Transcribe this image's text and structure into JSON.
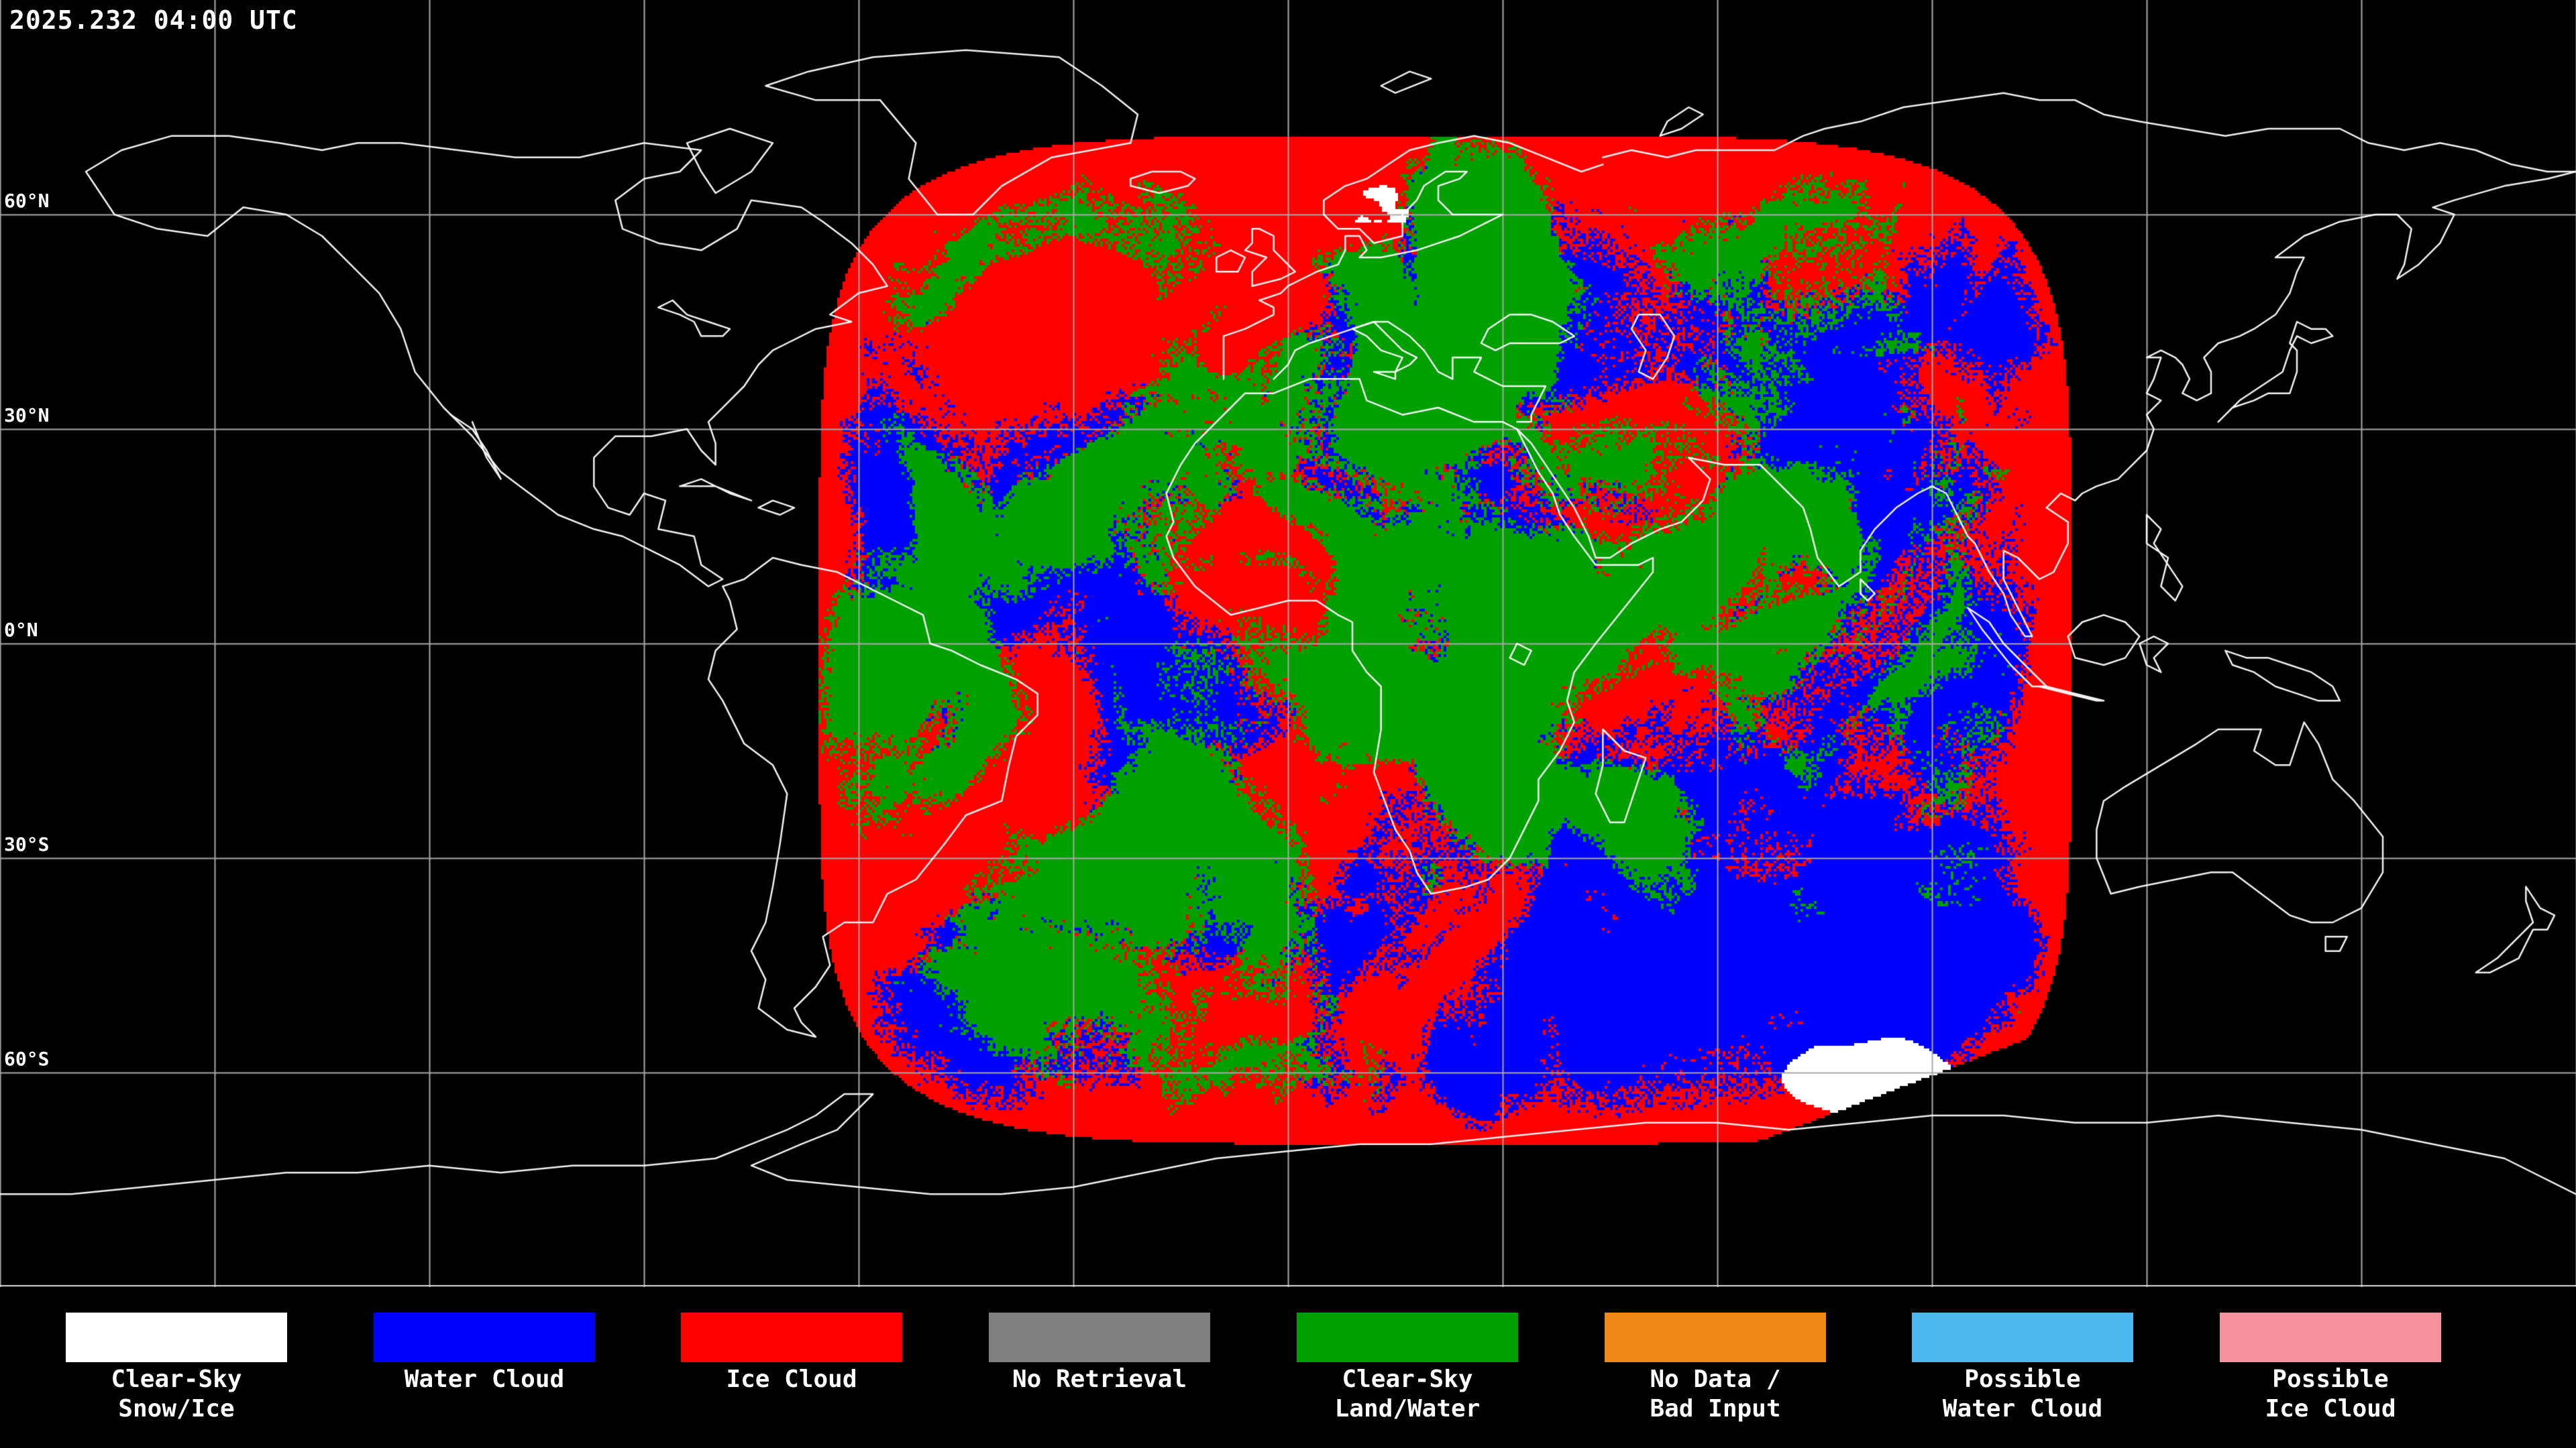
{
  "header": {
    "timestamp": "2025.232 04:00 UTC"
  },
  "map": {
    "latitude_labels": [
      {
        "text": "60°N",
        "lat": 60
      },
      {
        "text": "30°N",
        "lat": 30
      },
      {
        "text": "0°N",
        "lat": 0
      },
      {
        "text": "30°S",
        "lat": -30
      },
      {
        "text": "60°S",
        "lat": -60
      }
    ],
    "colors": {
      "background": "#000000",
      "grid": "#aaaaaa",
      "coastline": "#ffffff",
      "label": "#ffffff"
    }
  },
  "legend": {
    "items": [
      {
        "line1": "Clear-Sky",
        "line2": "Snow/Ice",
        "color": "#ffffff"
      },
      {
        "line1": "Water Cloud",
        "line2": "",
        "color": "#0000ff"
      },
      {
        "line1": "Ice Cloud",
        "line2": "",
        "color": "#ff0000"
      },
      {
        "line1": "No Retrieval",
        "line2": "",
        "color": "#808080"
      },
      {
        "line1": "Clear-Sky",
        "line2": "Land/Water",
        "color": "#00a000"
      },
      {
        "line1": "No Data /",
        "line2": "Bad Input",
        "color": "#f08818"
      },
      {
        "line1": "Possible",
        "line2": "Water Cloud",
        "color": "#4db8f0"
      },
      {
        "line1": "Possible",
        "line2": "Ice Cloud",
        "color": "#f4919b"
      }
    ]
  }
}
